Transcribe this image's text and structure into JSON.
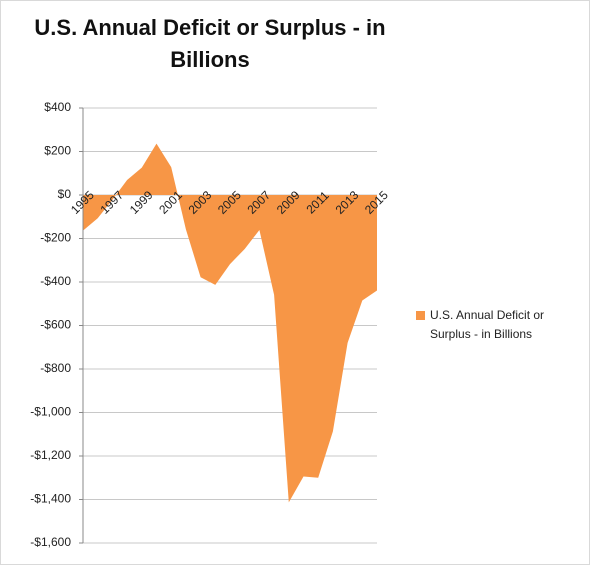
{
  "chart_data": {
    "type": "area",
    "title": "U.S. Annual Deficit or Surplus - in Billions",
    "categories": [
      "1995",
      null,
      "1997",
      null,
      "1999",
      null,
      "2001",
      null,
      "2003",
      null,
      "2005",
      null,
      "2007",
      null,
      "2009",
      null,
      "2011",
      null,
      "2013",
      null,
      "2015"
    ],
    "series": [
      {
        "name": "U.S. Annual Deficit or Surplus - in Billions",
        "color": "#f79646",
        "values": [
          -164,
          -107,
          -22,
          69,
          126,
          236,
          128,
          -158,
          -378,
          -413,
          -318,
          -248,
          -161,
          -459,
          -1413,
          -1294,
          -1300,
          -1087,
          -680,
          -485,
          -439
        ]
      }
    ],
    "ylim": [
      -1600,
      400
    ],
    "yticks": [
      {
        "value": -1600,
        "label": "-$1,600"
      },
      {
        "value": -1400,
        "label": "-$1,400"
      },
      {
        "value": -1200,
        "label": "-$1,200"
      },
      {
        "value": -1000,
        "label": "-$1,000"
      },
      {
        "value": -800,
        "label": "-$800"
      },
      {
        "value": -600,
        "label": "-$600"
      },
      {
        "value": -400,
        "label": "-$400"
      },
      {
        "value": -200,
        "label": "-$200"
      },
      {
        "value": 0,
        "label": "$0"
      },
      {
        "value": 200,
        "label": "$200"
      },
      {
        "value": 400,
        "label": "$400"
      }
    ],
    "grid": true,
    "legend": "right"
  }
}
